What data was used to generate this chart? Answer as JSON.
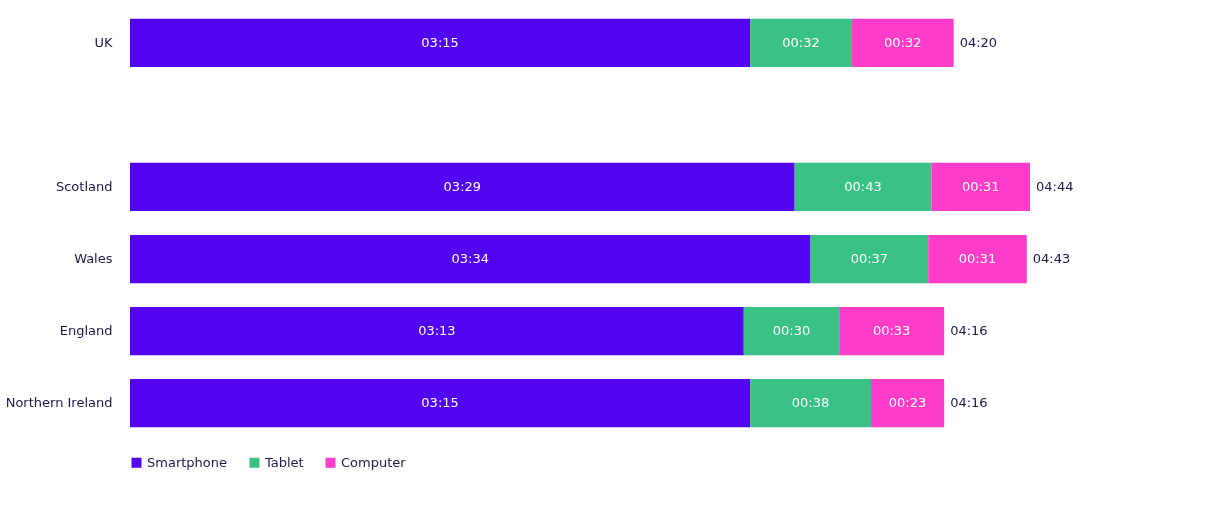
{
  "chart_data": {
    "type": "bar",
    "orientation": "horizontal",
    "stacked": true,
    "categories": [
      "UK",
      null,
      "Scotland",
      "Wales",
      "England",
      "Northern Ireland"
    ],
    "series": [
      {
        "name": "Smartphone",
        "color": "#5203f0",
        "values": [
          195,
          null,
          209,
          214,
          193,
          195
        ],
        "value_labels": [
          "03:15",
          null,
          "03:29",
          "03:34",
          "03:13",
          "03:15"
        ]
      },
      {
        "name": "Tablet",
        "color": "#3ac285",
        "values": [
          32,
          null,
          43,
          37,
          30,
          38
        ],
        "value_labels": [
          "00:32",
          null,
          "00:43",
          "00:37",
          "00:30",
          "00:38"
        ]
      },
      {
        "name": "Computer",
        "color": "#ff3dc8",
        "values": [
          32,
          null,
          31,
          31,
          33,
          23
        ],
        "value_labels": [
          "00:32",
          null,
          "00:31",
          "00:31",
          "00:33",
          "00:23"
        ]
      }
    ],
    "totals": [
      "04:20",
      null,
      "04:44",
      "04:43",
      "04:16",
      "04:16"
    ],
    "legend": "bottom",
    "grid": false,
    "tick_labels": "y"
  }
}
